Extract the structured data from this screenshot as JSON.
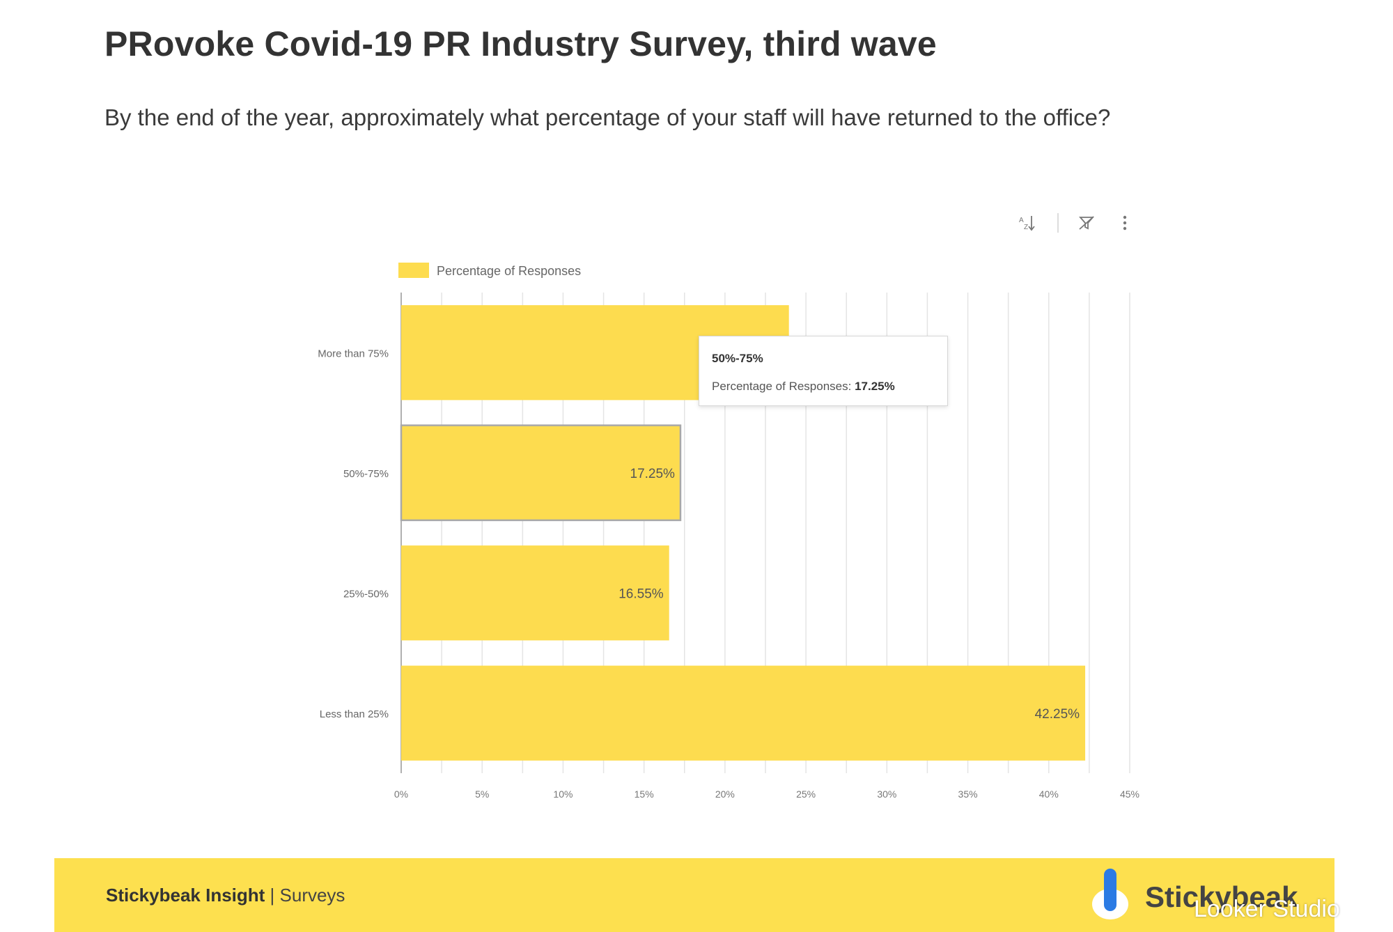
{
  "header": {
    "title": "PRovoke Covid-19 PR Industry Survey, third wave",
    "subtitle": "By the end of the year, approximately what percentage of your staff will have returned to the office?"
  },
  "toolbar": {
    "sort_icon": "sort-az-icon",
    "filter_icon": "filter-reset-icon",
    "more_icon": "more-vertical-icon"
  },
  "colors": {
    "bar": "#fddc4f",
    "grid": "#e4e4e4",
    "footer": "#fde04f"
  },
  "chart_data": {
    "type": "bar",
    "orientation": "horizontal",
    "categories": [
      "More than 75%",
      "50%-75%",
      "25%-50%",
      "Less than 25%"
    ],
    "series": [
      {
        "name": "Percentage of Responses",
        "values": [
          23.95,
          17.25,
          16.55,
          42.25
        ],
        "labels": [
          "",
          "17.25%",
          "16.55%",
          "42.25%"
        ]
      }
    ],
    "x_ticks": [
      "0%",
      "5%",
      "10%",
      "15%",
      "20%",
      "25%",
      "30%",
      "35%",
      "40%",
      "45%"
    ],
    "xlim": [
      0,
      45
    ],
    "legend": "top-left",
    "grid": true,
    "highlighted_category": "50%-75%"
  },
  "tooltip": {
    "title": "50%-75%",
    "label": "Percentage of Responses:",
    "value": "17.25%"
  },
  "footer": {
    "brand": "Stickybeak Insight",
    "sep": " | ",
    "section": "Surveys",
    "logo_text": "Stickybeak",
    "overlay_text": "Looker Studio"
  }
}
